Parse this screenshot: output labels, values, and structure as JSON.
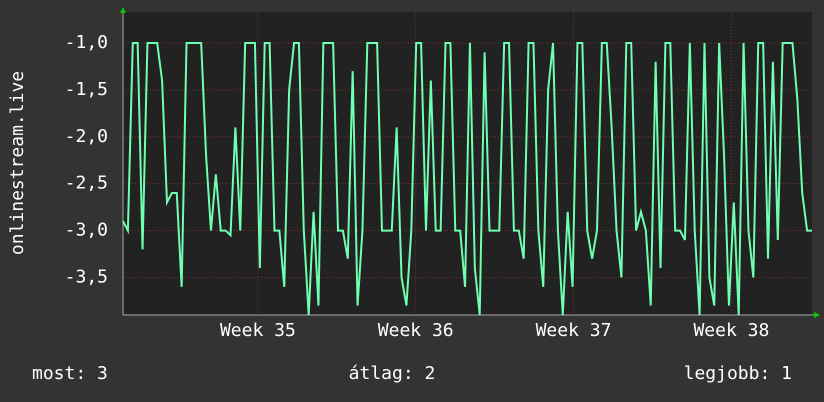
{
  "chart_data": {
    "type": "line",
    "y_label": "onlinestream.live",
    "color": "#6effb0",
    "grid": true,
    "xlim": [
      0,
      141
    ],
    "xticks": [
      {
        "value": 27.6,
        "label": "Week 35"
      },
      {
        "value": 59.9,
        "label": "Week 36"
      },
      {
        "value": 92.2,
        "label": "Week 37"
      },
      {
        "value": 124.5,
        "label": "Week 38"
      }
    ],
    "ylim": [
      -3.9,
      -0.67
    ],
    "yticks": [
      {
        "value": -1,
        "label": "-1,0"
      },
      {
        "value": -1.5,
        "label": "-1,5"
      },
      {
        "value": -2,
        "label": "-2,0"
      },
      {
        "value": -2.5,
        "label": "-2,5"
      },
      {
        "value": -3,
        "label": "-3,0"
      },
      {
        "value": -3.5,
        "label": "-3,5"
      }
    ],
    "values": [
      -2.9,
      -3,
      -1,
      -1,
      -3.2,
      -1,
      -1,
      -1,
      -1.4,
      -2.7,
      -2.6,
      -2.6,
      -3.6,
      -1,
      -1,
      -1,
      -1,
      -2.2,
      -3,
      -2.4,
      -3,
      -3,
      -3.05,
      -1.9,
      -3,
      -1,
      -1,
      -1,
      -3.4,
      -1,
      -1,
      -3,
      -3,
      -3.6,
      -1.5,
      -1,
      -1,
      -3,
      -3.9,
      -2.8,
      -3.8,
      -1,
      -1,
      -1,
      -3,
      -3,
      -3.3,
      -1.3,
      -3.8,
      -3,
      -1,
      -1,
      -1,
      -3,
      -3,
      -3,
      -1.9,
      -3.5,
      -3.8,
      -3,
      -1,
      -1,
      -3,
      -1.4,
      -3,
      -3,
      -1,
      -1,
      -3,
      -3,
      -3.6,
      -1,
      -3.4,
      -3.9,
      -1.1,
      -3,
      -3,
      -3,
      -1,
      -1,
      -3,
      -3,
      -3.3,
      -1,
      -1,
      -3,
      -3.6,
      -1.5,
      -1,
      -3,
      -3.9,
      -2.8,
      -3.6,
      -1,
      -1,
      -3,
      -3.3,
      -3,
      -1,
      -1,
      -1.9,
      -3,
      -3.5,
      -1,
      -1,
      -3,
      -2.8,
      -3,
      -3.8,
      -1.2,
      -3.4,
      -1,
      -1,
      -3,
      -3,
      -3.1,
      -1,
      -3,
      -3.9,
      -1,
      -3.5,
      -3.8,
      -1,
      -2.2,
      -3.8,
      -2.7,
      -3.9,
      -1,
      -3,
      -3.5,
      -1,
      -1,
      -3.3,
      -1.2,
      -3.1,
      -1,
      -1,
      -1,
      -1.6,
      -2.6,
      -3,
      -3
    ]
  },
  "footer": {
    "current": "most: 3",
    "average": "átlag: 2",
    "best": "legjobb: 1"
  }
}
